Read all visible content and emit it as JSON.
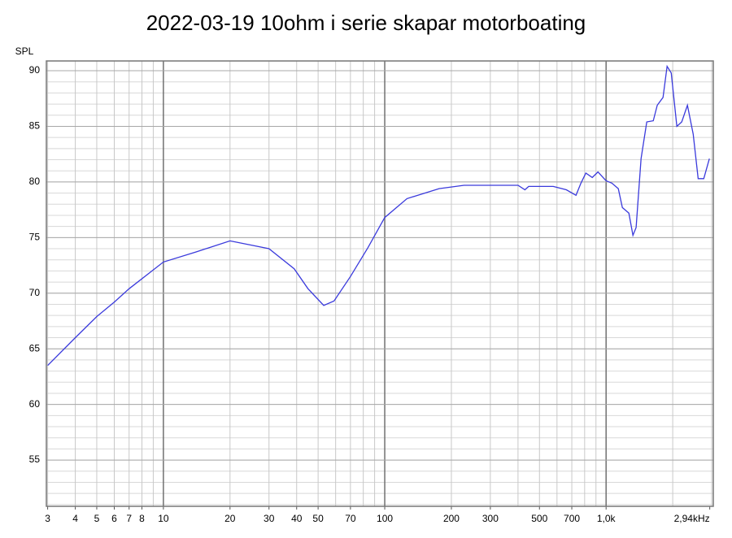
{
  "chart_data": {
    "type": "line",
    "title": "2022-03-19 10ohm i serie skapar motorboating",
    "y_label": "SPL",
    "x_scale": "log",
    "grid": true,
    "xlim": [
      2.96,
      3050
    ],
    "ylim": [
      50.84,
      90.88
    ],
    "xticks": [
      3,
      4,
      5,
      6,
      7,
      8,
      10,
      20,
      30,
      40,
      50,
      70,
      100,
      200,
      300,
      500,
      700,
      {
        "value": 1000,
        "label": "1,0k"
      },
      {
        "value": 2940,
        "label": "2,94kHz"
      }
    ],
    "yticks": [
      55,
      60,
      65,
      70,
      75,
      80,
      85,
      90
    ],
    "x": [
      3,
      4,
      5,
      6,
      7,
      10,
      14,
      20,
      30,
      39,
      45,
      53,
      59,
      70,
      84,
      100,
      126,
      176,
      228,
      400,
      430,
      447,
      577,
      661,
      731,
      770,
      810,
      866,
      919,
      1000,
      1061,
      1135,
      1184,
      1267,
      1322,
      1367,
      1439,
      1527,
      1633,
      1703,
      1808,
      1887,
      1969,
      2088,
      2197,
      2331,
      2474,
      2605,
      2762,
      2929
    ],
    "series": [
      {
        "name": "SPL",
        "color": "#3a3adc",
        "values": [
          63.5,
          66.0,
          67.9,
          69.2,
          70.4,
          72.8,
          73.7,
          74.7,
          74.0,
          72.2,
          70.4,
          68.9,
          69.3,
          71.5,
          74.1,
          76.8,
          78.5,
          79.4,
          79.7,
          79.7,
          79.3,
          79.6,
          79.6,
          79.3,
          78.8,
          79.9,
          80.8,
          80.4,
          80.9,
          80.1,
          79.9,
          79.4,
          77.7,
          77.2,
          75.2,
          75.9,
          82.1,
          85.4,
          85.5,
          86.9,
          87.6,
          90.4,
          89.8,
          85.0,
          85.4,
          86.9,
          84.3,
          80.3,
          80.3,
          82.1
        ]
      }
    ]
  }
}
